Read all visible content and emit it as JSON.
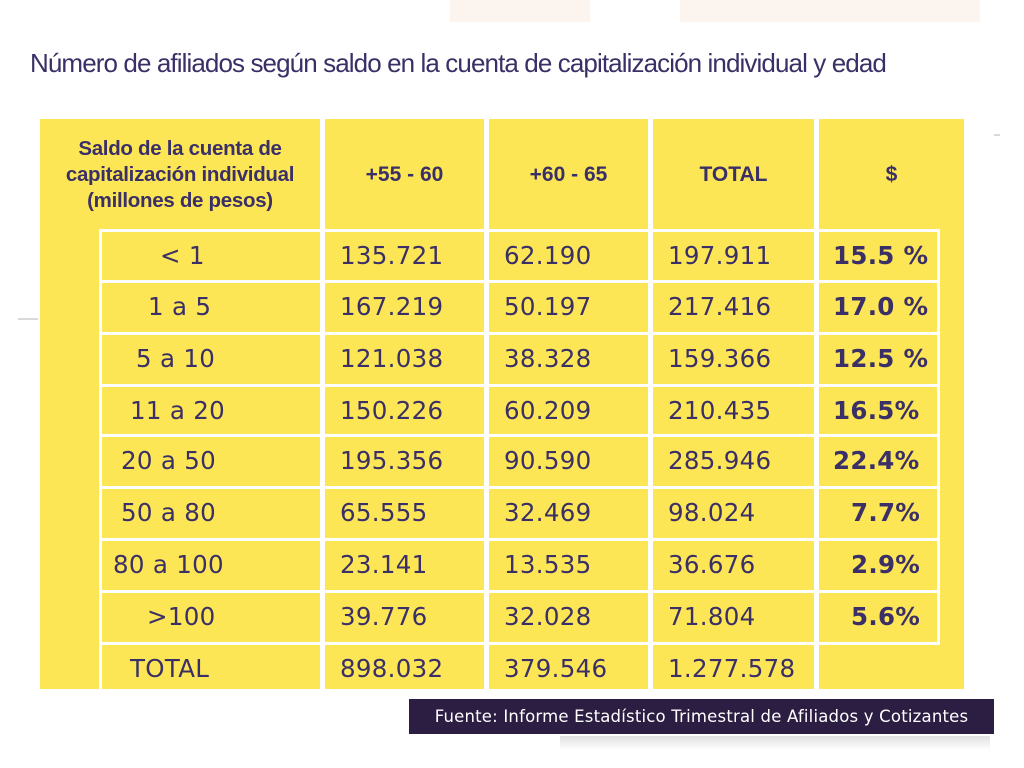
{
  "title": "Número de afiliados según saldo en la cuenta de capitalización individual y edad",
  "table": {
    "headers": [
      "Saldo de la cuenta de capitalización individual (millones de pesos)",
      "+55 - 60",
      "+60 - 65",
      "TOTAL",
      "$"
    ],
    "rows": [
      {
        "range": "< 1",
        "a": "135.721",
        "b": "62.190",
        "total": "197.911",
        "pct": "15.5 %"
      },
      {
        "range": "1 a 5",
        "a": "167.219",
        "b": "50.197",
        "total": "217.416",
        "pct": "17.0 %"
      },
      {
        "range": "5 a 10",
        "a": "121.038",
        "b": "38.328",
        "total": "159.366",
        "pct": "12.5 %"
      },
      {
        "range": "11 a 20",
        "a": "150.226",
        "b": "60.209",
        "total": "210.435",
        "pct": "16.5%"
      },
      {
        "range": "20 a 50",
        "a": "195.356",
        "b": "90.590",
        "total": "285.946",
        "pct": "22.4%"
      },
      {
        "range": "50 a 80",
        "a": "65.555",
        "b": "32.469",
        "total": "98.024",
        "pct": "7.7%"
      },
      {
        "range": "80 a 100",
        "a": "23.141",
        "b": "13.535",
        "total": "36.676",
        "pct": "2.9%"
      },
      {
        "range": ">100",
        "a": "39.776",
        "b": "32.028",
        "total": "71.804",
        "pct": "5.6%"
      }
    ],
    "total_row": {
      "label": "TOTAL",
      "a": "898.032",
      "b": "379.546",
      "total": "1.277.578"
    }
  },
  "source": "Fuente: Informe Estadístico Trimestral de Afiliados y Cotizantes",
  "colors": {
    "table_bg": "#fce656",
    "text": "#3a2f66",
    "source_bg": "#2c1d42"
  }
}
